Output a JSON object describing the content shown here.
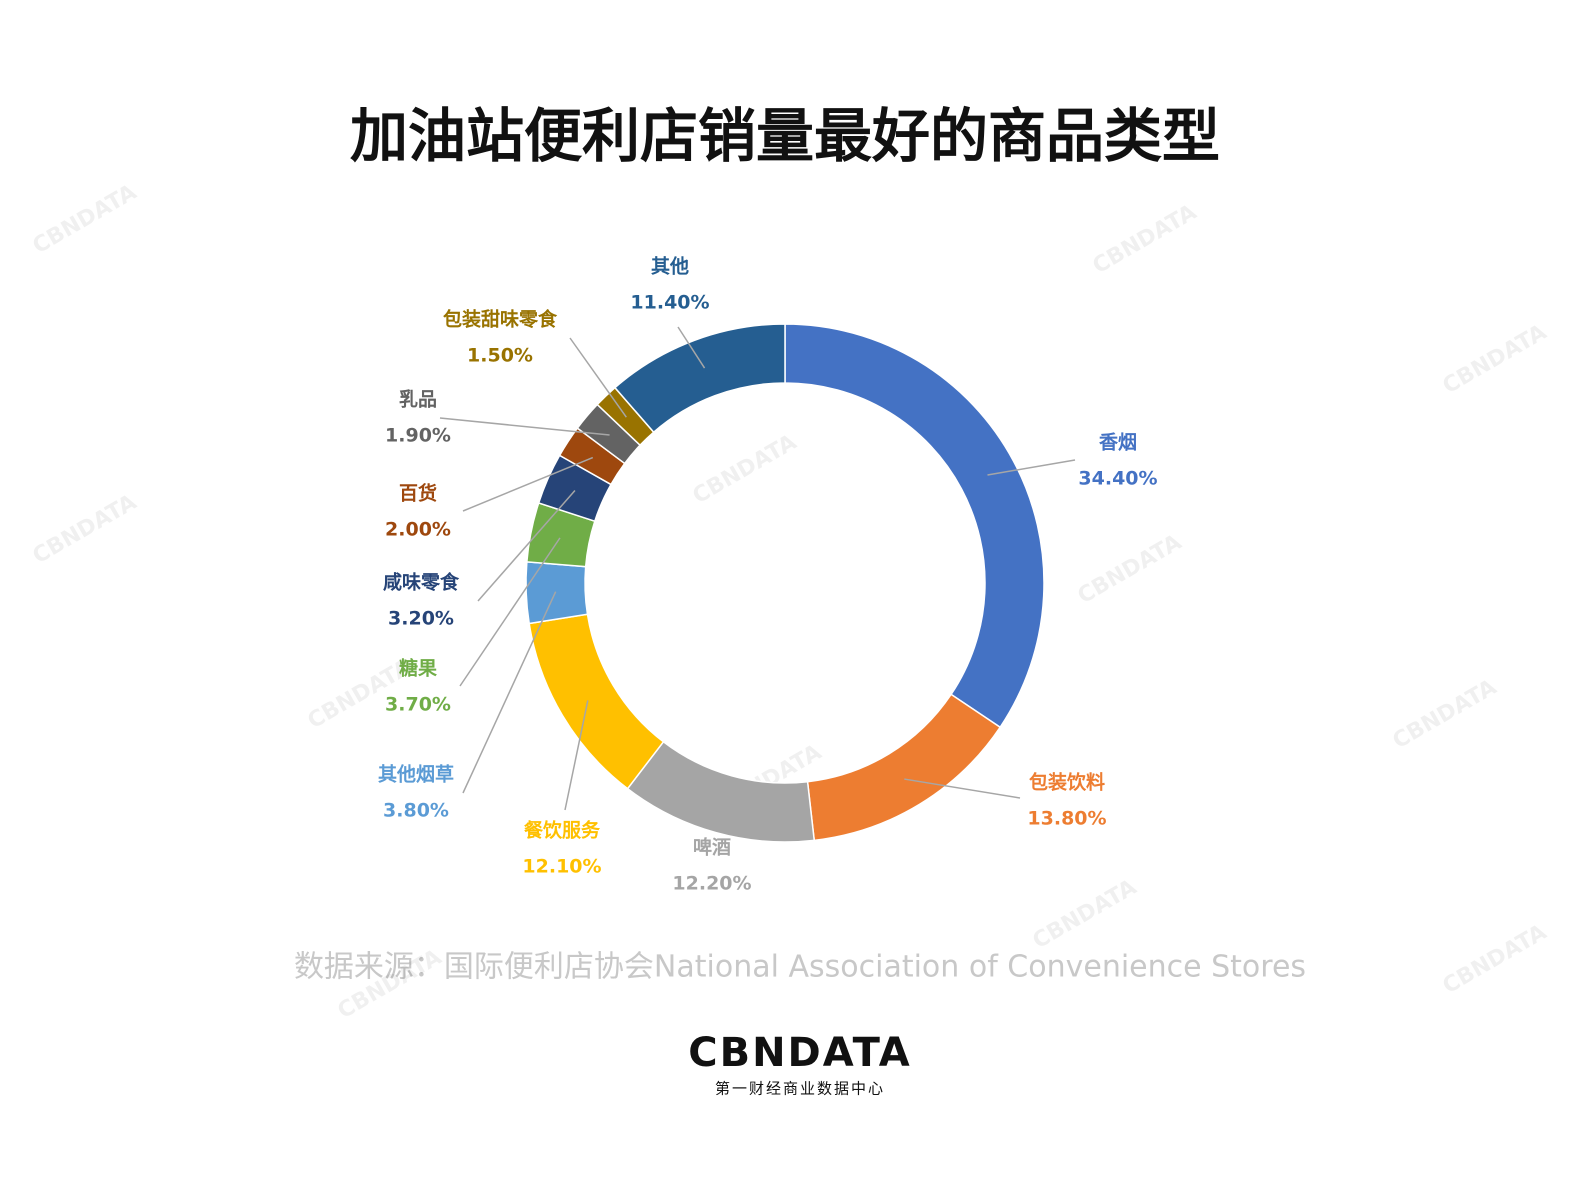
{
  "chart_data": {
    "type": "donut",
    "title": "加油站便利店销量最好的商品类型",
    "categories": [
      "香烟",
      "包装饮料",
      "啤酒",
      "餐饮服务",
      "其他烟草",
      "糖果",
      "咸味零食",
      "百货",
      "乳品",
      "包装甜味零食",
      "其他"
    ],
    "series": [
      {
        "values": [
          34.4,
          13.8,
          12.2,
          12.1,
          3.8,
          3.7,
          3.2,
          2.0,
          1.9,
          1.5,
          11.4
        ],
        "value_labels": [
          "34.40%",
          "13.80%",
          "12.20%",
          "12.10%",
          "3.80%",
          "3.70%",
          "3.20%",
          "2.00%",
          "1.90%",
          "1.50%",
          "11.40%"
        ],
        "colors": [
          "#4472c4",
          "#ed7d31",
          "#a5a5a5",
          "#ffc000",
          "#5b9bd5",
          "#70ad47",
          "#264478",
          "#9e480e",
          "#636363",
          "#997300",
          "#255e91"
        ]
      }
    ],
    "source": "数据来源：国际便利店协会National Association of Convenience Stores",
    "logo": {
      "name": "CBNDATA",
      "subtitle": "第一财经商业数据中心"
    },
    "watermark": "CBNDATA"
  }
}
